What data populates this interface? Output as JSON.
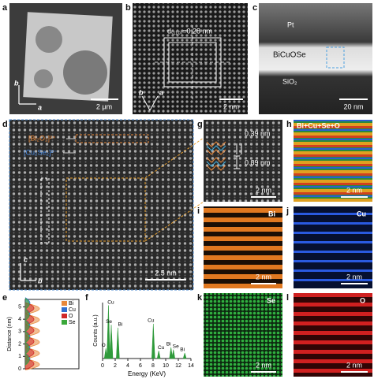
{
  "panels": {
    "a": {
      "label": "a",
      "axis_1": "b",
      "axis_2": "a",
      "scale_bar": "2 μm"
    },
    "b": {
      "label": "b",
      "spacing": "d₍₁₁₀₎=0.28 nm",
      "axis_1": "b",
      "axis_2": "a",
      "scale_bar": "2 nm"
    },
    "c": {
      "label": "c",
      "layers": [
        "Pt",
        "BiCuOSe",
        "SiO₂"
      ],
      "scale_bar": "20 nm"
    },
    "d": {
      "label": "d",
      "layer_1": "[Bi₂O₂]²⁺",
      "layer_2": "[Cu₂Se₂]²⁻",
      "axis_1": "c",
      "axis_2": "b",
      "scale_bar": "2.5 nm"
    },
    "g": {
      "label": "g",
      "spacing_1": "0.39 nm",
      "spacing_2": "0.89 nm",
      "scale_bar": "2 nm"
    },
    "h": {
      "label": "h",
      "element": "Bi+Cu+Se+O",
      "scale_bar": "2 nm"
    },
    "i": {
      "label": "i",
      "element": "Bi",
      "scale_bar": "2 nm"
    },
    "j": {
      "label": "j",
      "element": "Cu",
      "scale_bar": "2 nm"
    },
    "k": {
      "label": "k",
      "element": "Se",
      "scale_bar": "2 nm"
    },
    "l": {
      "label": "l",
      "element": "O",
      "scale_bar": "2 nm"
    }
  },
  "chart_data": [
    {
      "type": "profile",
      "label": "e",
      "ylabel": "Distance (nm)",
      "ylim": [
        0,
        5.6
      ],
      "yticks": [
        0,
        1,
        2,
        3,
        4,
        5
      ],
      "series": [
        {
          "name": "Bi",
          "color": "#e8883a",
          "values": [
            0.35,
            1.25,
            2.15,
            3.05,
            3.95,
            4.85
          ]
        },
        {
          "name": "Cu",
          "color": "#2f6fd0",
          "values": [
            0.8,
            1.7,
            2.6,
            3.5,
            4.4,
            5.3
          ]
        },
        {
          "name": "O",
          "color": "#d02828",
          "values": [
            0.4,
            1.3,
            2.2,
            3.1,
            4.0,
            4.9
          ]
        },
        {
          "name": "Se",
          "color": "#3aa83a",
          "values": [
            0.75,
            1.65,
            2.55,
            3.45,
            4.35,
            5.25
          ]
        }
      ]
    },
    {
      "type": "spectrum",
      "label": "f",
      "xlabel": "Energy (KeV)",
      "ylabel": "Counts (a.u.)",
      "color": "#2e9a3a",
      "xlim": [
        0,
        14
      ],
      "xticks": [
        0,
        2,
        4,
        6,
        8,
        10,
        12,
        14
      ],
      "ylim": [
        0,
        100
      ],
      "x": [
        0.52,
        0.93,
        1.38,
        2.42,
        8.04,
        8.9,
        10.84,
        11.22,
        13.02
      ],
      "values": [
        18,
        95,
        60,
        55,
        62,
        14,
        20,
        16,
        10
      ],
      "peak_labels": [
        "O",
        "Cu",
        "Se",
        "Bi",
        "Cu",
        "Cu",
        "Bi",
        "Se",
        "Bi"
      ]
    }
  ]
}
